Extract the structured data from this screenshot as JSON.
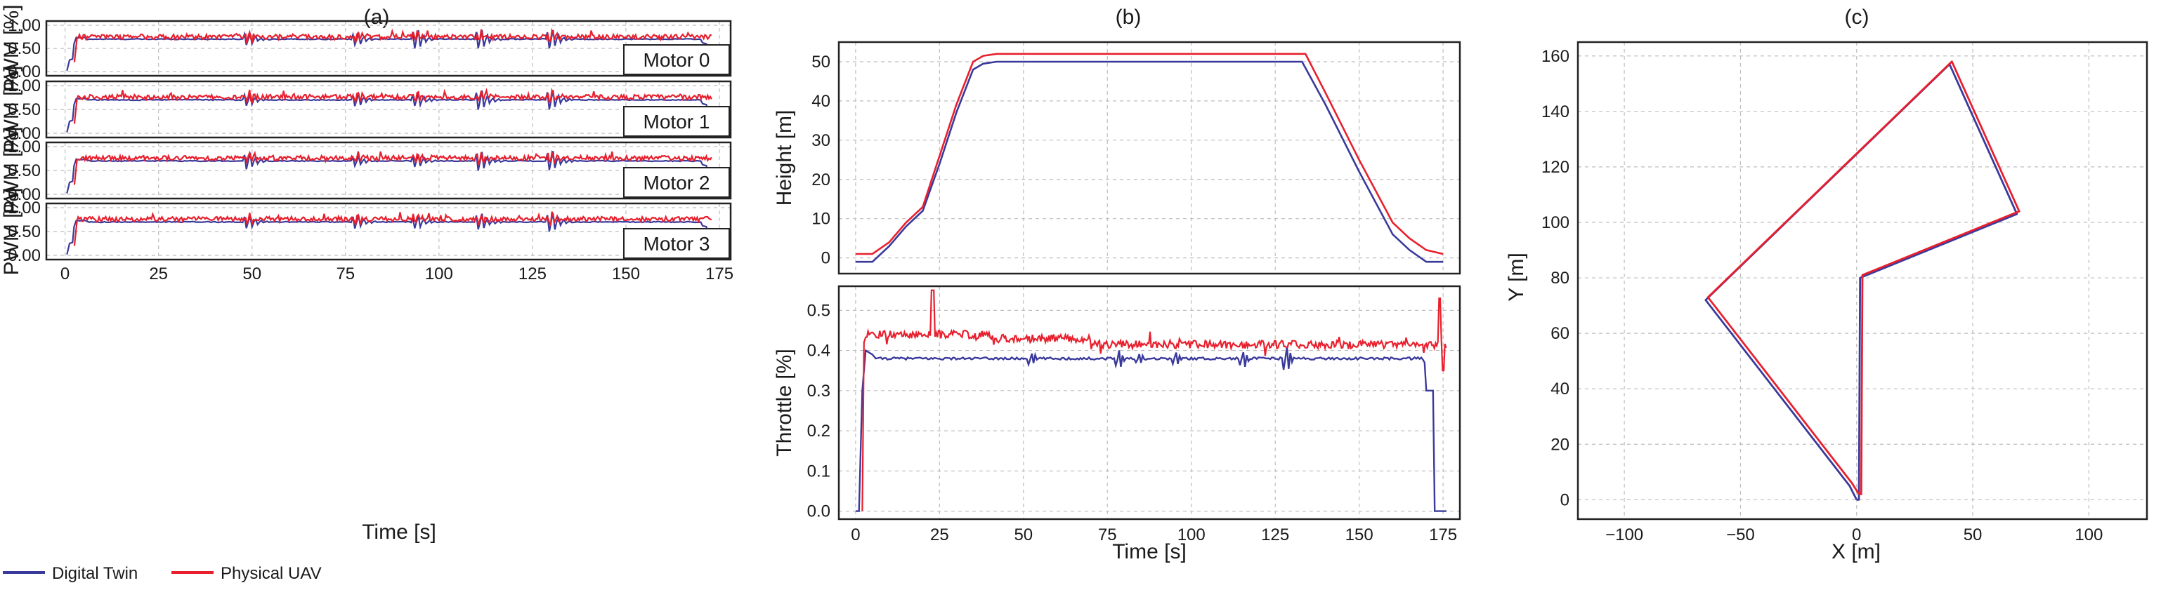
{
  "colors": {
    "digital_twin": "#3a3a9c",
    "physical_uav": "#e8202e"
  },
  "legend": {
    "digital_twin": "Digital Twin",
    "physical_uav": "Physical UAV"
  },
  "chart_data": [
    {
      "id": "a",
      "panel_label": "(a)",
      "type": "line",
      "xlabel": "Time [s]",
      "ylabel": "PWM [%]",
      "xlim": [
        -5,
        178
      ],
      "ylim": [
        0,
        1.0
      ],
      "x_ticks": [
        0,
        25,
        50,
        75,
        100,
        125,
        150,
        175
      ],
      "y_ticks": [
        0.0,
        0.5,
        1.0
      ],
      "y_tick_labels": [
        "0.00",
        "0.50",
        "1.00"
      ],
      "subplots": [
        {
          "label": "Motor 0",
          "digital_twin_level": 0.7,
          "physical_uav_level": 0.75,
          "spikes": [
            {
              "t": 49,
              "dt_amp": 0.2,
              "uav_amp": 0.15
            },
            {
              "t": 78,
              "dt_amp": 0.2,
              "uav_amp": 0.15
            },
            {
              "t": 94,
              "dt_amp": 0.3,
              "uav_amp": 0.15
            },
            {
              "t": 111,
              "dt_amp": 0.3,
              "uav_amp": 0.15
            },
            {
              "t": 130,
              "dt_amp": 0.3,
              "uav_amp": 0.15
            }
          ]
        },
        {
          "label": "Motor 1",
          "digital_twin_level": 0.7,
          "physical_uav_level": 0.76,
          "spikes": [
            {
              "t": 49,
              "dt_amp": 0.2,
              "uav_amp": 0.15
            },
            {
              "t": 78,
              "dt_amp": 0.2,
              "uav_amp": 0.15
            },
            {
              "t": 94,
              "dt_amp": 0.2,
              "uav_amp": 0.15
            },
            {
              "t": 111,
              "dt_amp": 0.3,
              "uav_amp": 0.15
            },
            {
              "t": 130,
              "dt_amp": 0.3,
              "uav_amp": 0.15
            }
          ]
        },
        {
          "label": "Motor 2",
          "digital_twin_level": 0.7,
          "physical_uav_level": 0.76,
          "spikes": [
            {
              "t": 49,
              "dt_amp": 0.25,
              "uav_amp": 0.15
            },
            {
              "t": 78,
              "dt_amp": 0.15,
              "uav_amp": 0.15
            },
            {
              "t": 94,
              "dt_amp": 0.2,
              "uav_amp": 0.15
            },
            {
              "t": 111,
              "dt_amp": 0.3,
              "uav_amp": 0.15
            },
            {
              "t": 130,
              "dt_amp": 0.3,
              "uav_amp": 0.15
            }
          ]
        },
        {
          "label": "Motor 3",
          "digital_twin_level": 0.7,
          "physical_uav_level": 0.76,
          "spikes": [
            {
              "t": 49,
              "dt_amp": 0.2,
              "uav_amp": 0.15
            },
            {
              "t": 78,
              "dt_amp": 0.2,
              "uav_amp": 0.15
            },
            {
              "t": 94,
              "dt_amp": 0.2,
              "uav_amp": 0.15
            },
            {
              "t": 111,
              "dt_amp": 0.25,
              "uav_amp": 0.15
            },
            {
              "t": 130,
              "dt_amp": 0.3,
              "uav_amp": 0.15
            }
          ]
        }
      ],
      "series": [
        {
          "name": "Digital Twin",
          "description": "step to ~0.70 at t≈2s, holds until t≈170s, drops to ~0.05 at 173s"
        },
        {
          "name": "Physical UAV",
          "description": "noisy ~0.73-0.80 from t≈3s to t≈173s"
        }
      ]
    },
    {
      "id": "b",
      "panel_label": "(b)",
      "type": "line",
      "xlabel": "Time [s]",
      "subplots": [
        {
          "ylabel": "Height [m]",
          "xlim": [
            -5,
            180
          ],
          "ylim": [
            -4,
            55
          ],
          "x_ticks": [
            0,
            25,
            50,
            75,
            100,
            125,
            150,
            175
          ],
          "y_ticks": [
            0,
            10,
            20,
            30,
            40,
            50
          ],
          "y_tick_labels": [
            "0",
            "10",
            "20",
            "30",
            "40",
            "50"
          ],
          "series": [
            {
              "name": "Digital Twin",
              "x": [
                0,
                5,
                10,
                15,
                20,
                25,
                30,
                35,
                38,
                42,
                50,
                75,
                100,
                125,
                133,
                140,
                150,
                160,
                165,
                170,
                175
              ],
              "y": [
                -1,
                -1,
                3,
                8,
                12,
                24,
                37,
                48,
                49.5,
                50,
                50,
                50,
                50,
                50,
                50,
                39,
                22,
                6,
                2,
                -1,
                -1
              ]
            },
            {
              "name": "Physical UAV",
              "x": [
                0,
                5,
                10,
                15,
                20,
                25,
                30,
                35,
                38,
                42,
                50,
                75,
                100,
                125,
                134,
                140,
                150,
                160,
                165,
                170,
                175
              ],
              "y": [
                1,
                1,
                4,
                9,
                13,
                26,
                39,
                50,
                51.5,
                52,
                52,
                52,
                52,
                52,
                52,
                42,
                25,
                9,
                5,
                2,
                1
              ]
            }
          ]
        },
        {
          "ylabel": "Throttle [%]",
          "xlim": [
            -5,
            180
          ],
          "ylim": [
            -0.02,
            0.56
          ],
          "x_ticks": [
            0,
            25,
            50,
            75,
            100,
            125,
            150,
            175
          ],
          "x_tick_labels": [
            "0",
            "25",
            "50",
            "75",
            "100",
            "125",
            "150",
            "175"
          ],
          "y_ticks": [
            0.0,
            0.1,
            0.2,
            0.3,
            0.4,
            0.5
          ],
          "y_tick_labels": [
            "0.0",
            "0.1",
            "0.2",
            "0.3",
            "0.4",
            "0.5"
          ],
          "series": [
            {
              "name": "Digital Twin",
              "description": "rises at t≈2s to ~0.40, drops to ~0.38 by t≈5s, holds ~0.38 with dips at 52,78,95,115,128; falls to 0.30 at 170 and 0 at 172"
            },
            {
              "name": "Physical UAV",
              "description": "noisy ~0.42-0.46 early, ~0.41-0.43 later, spike to 0.55 near t≈23, ends ~0.41 at 176"
            }
          ]
        }
      ]
    },
    {
      "id": "c",
      "panel_label": "(c)",
      "type": "line",
      "xlabel": "X [m]",
      "ylabel": "Y [m]",
      "xlim": [
        -120,
        125
      ],
      "ylim": [
        -7,
        165
      ],
      "x_ticks": [
        -100,
        -50,
        0,
        50,
        100
      ],
      "x_tick_labels": [
        "−100",
        "−50",
        "0",
        "50",
        "100"
      ],
      "y_ticks": [
        0,
        20,
        40,
        60,
        80,
        100,
        120,
        140,
        160
      ],
      "y_tick_labels": [
        "0",
        "20",
        "40",
        "60",
        "80",
        "100",
        "120",
        "140",
        "160"
      ],
      "series": [
        {
          "name": "Digital Twin",
          "x": [
            0,
            1,
            1.5,
            69,
            40,
            -65,
            -3,
            0
          ],
          "y": [
            0,
            0,
            80,
            103,
            157,
            72,
            5,
            0
          ]
        },
        {
          "name": "Physical UAV",
          "x": [
            1,
            2,
            2.5,
            70,
            41,
            -64,
            -2,
            1
          ],
          "y": [
            2,
            2,
            81,
            104,
            158,
            73,
            6,
            2
          ]
        }
      ]
    }
  ]
}
